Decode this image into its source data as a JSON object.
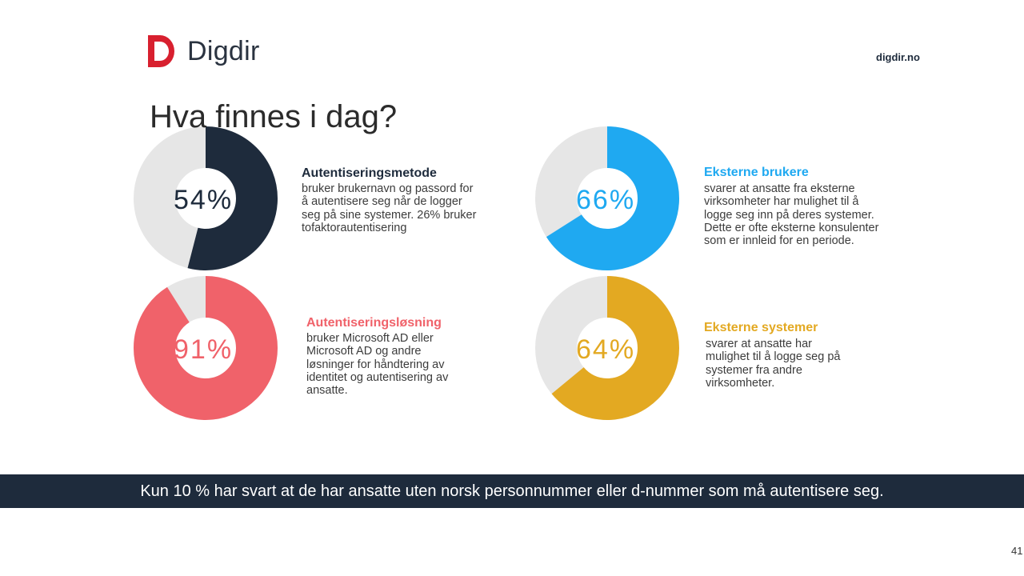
{
  "header": {
    "brand": "Digdir",
    "url": "digdir.no"
  },
  "title": "Hva finnes i dag?",
  "colors": {
    "track": "#e6e6e6",
    "navy": "#1e2b3c",
    "blue": "#1fa9f1",
    "red": "#f0626a",
    "gold": "#e3a922",
    "logo_red": "#d8202f"
  },
  "chart_data": [
    {
      "type": "pie",
      "variant": "donut",
      "value": 54,
      "label": "54%",
      "color": "#1e2b3c",
      "title": "Autentiseringsmetode",
      "description": "bruker brukernavn og passord for å autentisere seg når de logger seg på sine systemer. 26% bruker tofaktorautentisering"
    },
    {
      "type": "pie",
      "variant": "donut",
      "value": 66,
      "label": "66%",
      "color": "#1fa9f1",
      "title": "Eksterne brukere",
      "description": "svarer at ansatte fra eksterne virksomheter har mulighet til å logge seg inn på deres systemer. Dette er ofte eksterne konsulenter som er innleid for en periode."
    },
    {
      "type": "pie",
      "variant": "donut",
      "value": 91,
      "label": "91%",
      "color": "#f0626a",
      "title": "Autentiseringsløsning",
      "description": "bruker Microsoft AD eller Microsoft AD og andre løsninger for håndtering av identitet og autentisering av ansatte."
    },
    {
      "type": "pie",
      "variant": "donut",
      "value": 64,
      "label": "64%",
      "color": "#e3a922",
      "title": "Eksterne systemer",
      "description": "svarer at ansatte har mulighet til å logge seg på systemer fra andre virksomheter."
    }
  ],
  "banner": "Kun 10 % har svart at de har ansatte uten norsk personnummer eller d-nummer som må autentisere seg.",
  "page_number": "41"
}
